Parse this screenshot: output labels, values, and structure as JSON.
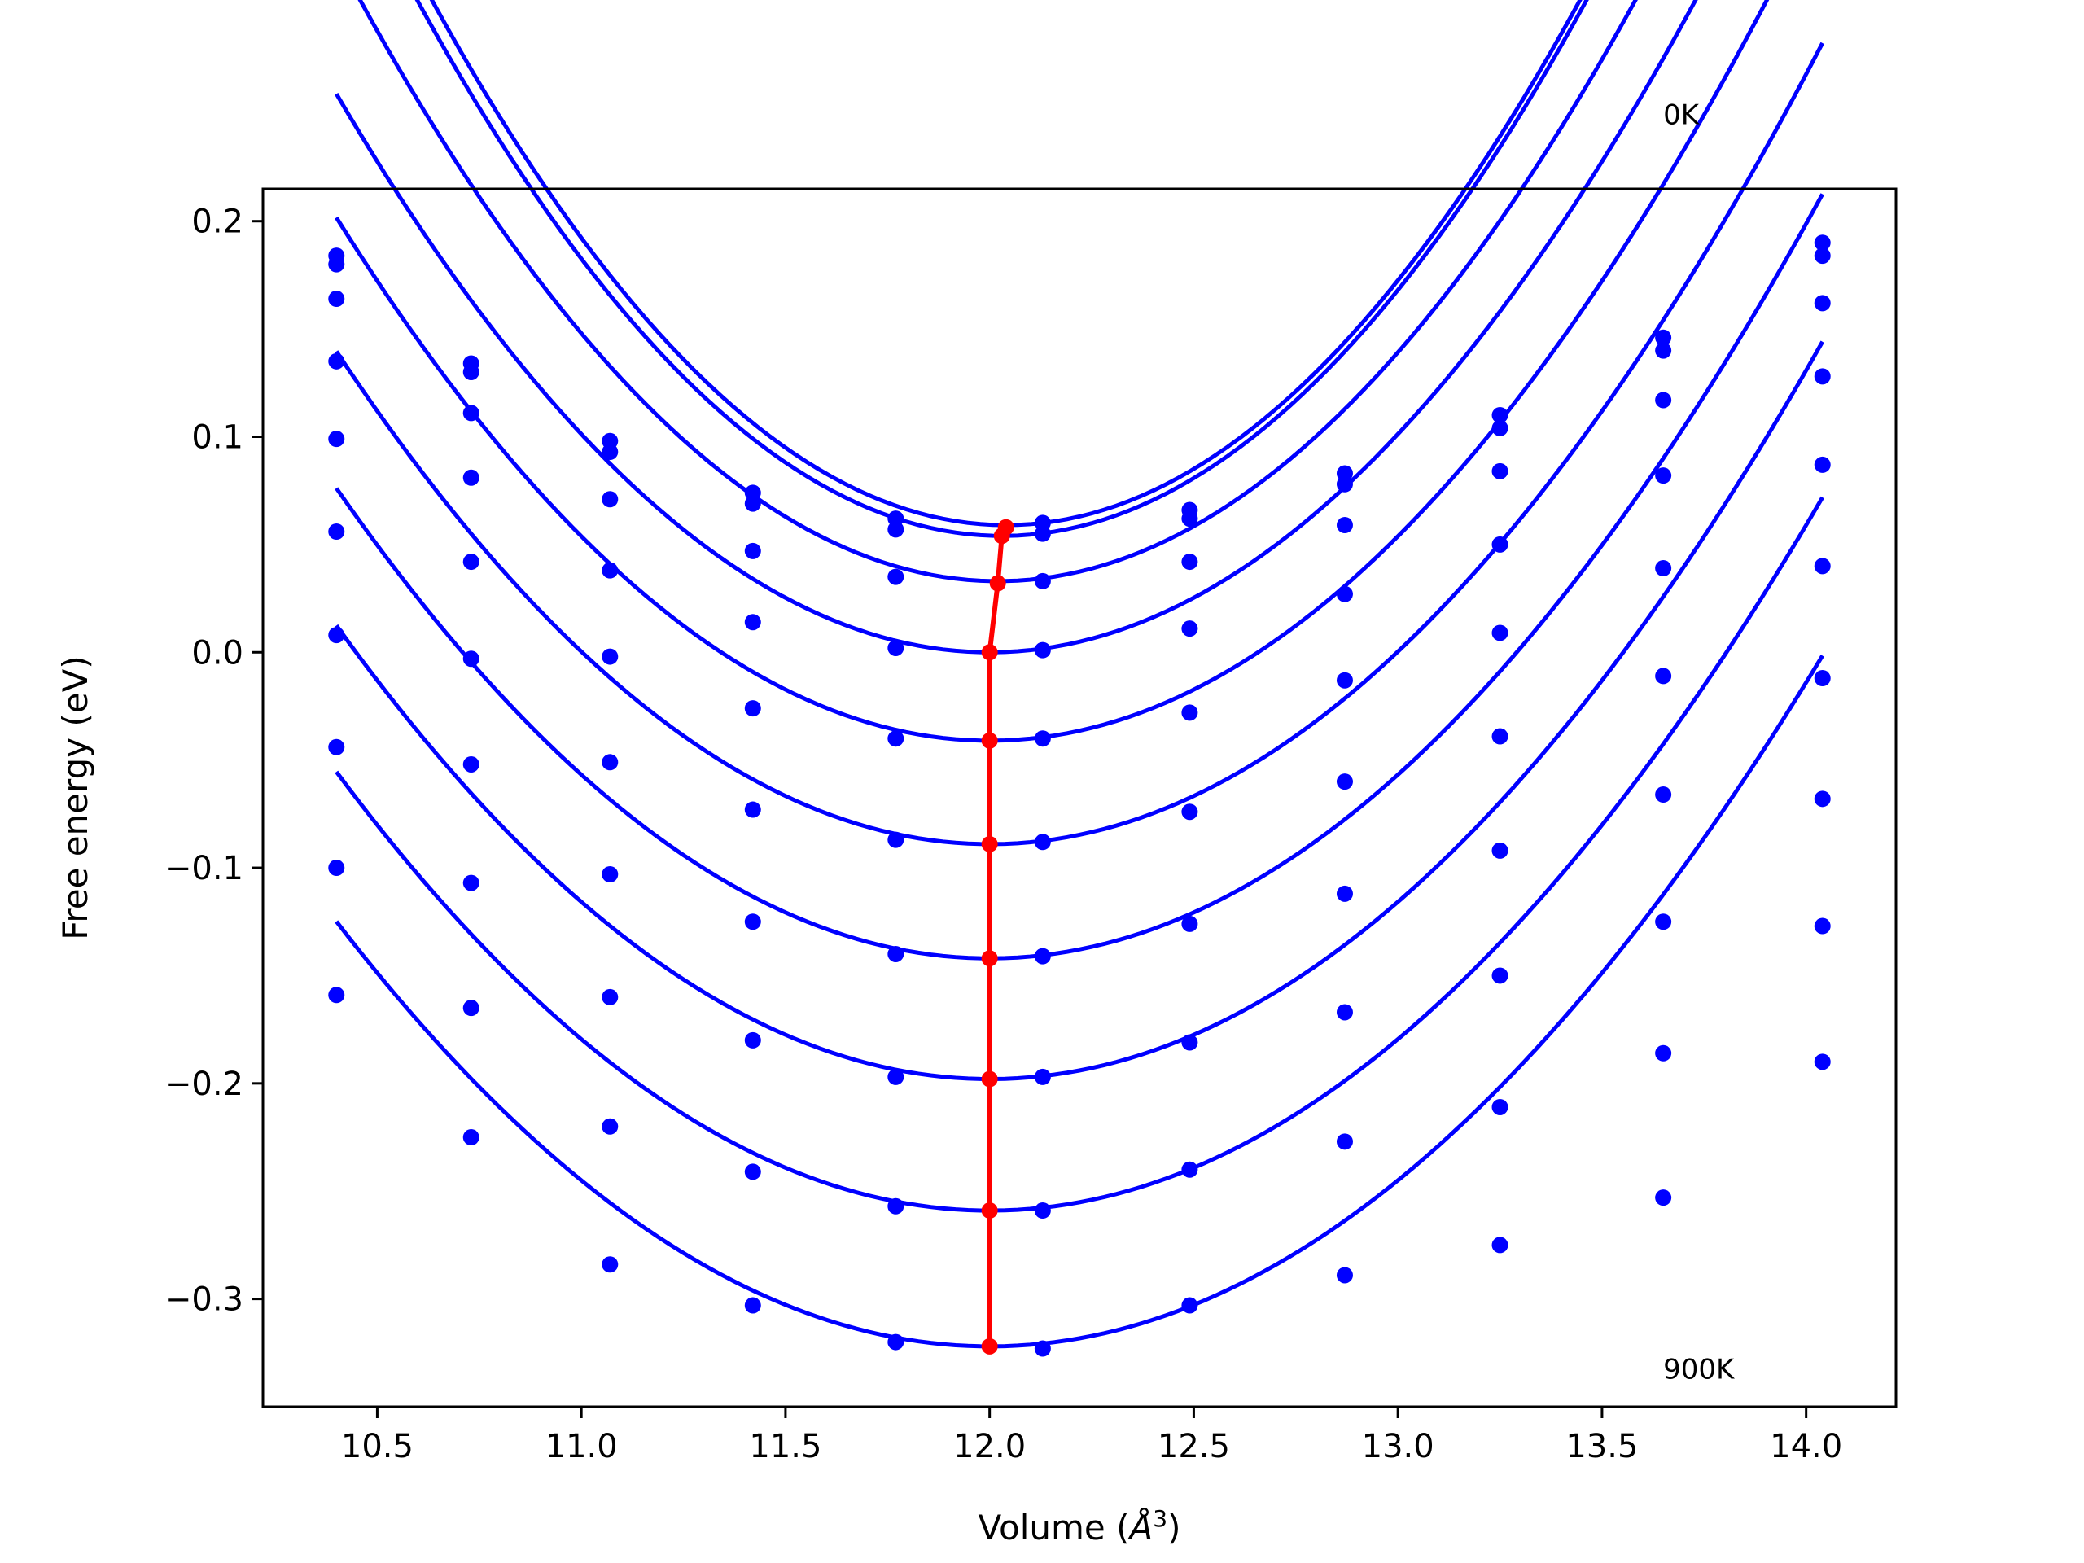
{
  "chart_data": {
    "type": "line",
    "title": "",
    "xlabel": "Volume (",
    "xlabel_unit": "Å",
    "xlabel_exp": "3",
    "xlabel_close": ")",
    "ylabel": "Free energy (eV)",
    "xlim": [
      10.22,
      14.22
    ],
    "ylim": [
      -0.35,
      0.215
    ],
    "xticks": [
      10.5,
      11.0,
      11.5,
      12.0,
      12.5,
      13.0,
      13.5,
      14.0
    ],
    "xtick_labels": [
      "10.5",
      "11.0",
      "11.5",
      "12.0",
      "12.5",
      "13.0",
      "13.5",
      "14.0"
    ],
    "yticks": [
      -0.3,
      -0.2,
      -0.1,
      0.0,
      0.1,
      0.2
    ],
    "ytick_labels": [
      "−0.3",
      "−0.2",
      "−0.1",
      "0.0",
      "0.1",
      "0.2"
    ],
    "grid": false,
    "annotations": [
      {
        "text": "0K",
        "x": 13.65,
        "y": 0.245
      },
      {
        "text": "900K",
        "x": 13.65,
        "y": -0.337
      }
    ],
    "x": [
      10.4,
      10.73,
      11.07,
      11.42,
      11.77,
      12.13,
      12.49,
      12.87,
      13.25,
      13.65,
      14.04
    ],
    "colors": {
      "curves": "#0000ff",
      "minima": "#ff0000"
    },
    "series": [
      {
        "values": [
          0.184,
          0.134,
          0.098,
          0.074,
          0.062,
          0.06,
          0.066,
          0.083,
          0.11,
          0.146,
          0.19
        ],
        "fit": {
          "a": 0.1232,
          "v0": 12.04,
          "f0": 0.059
        }
      },
      {
        "values": [
          0.18,
          0.13,
          0.093,
          0.069,
          0.057,
          0.055,
          0.062,
          0.078,
          0.104,
          0.14,
          0.184
        ],
        "fit": {
          "a": 0.1212,
          "v0": 12.03,
          "f0": 0.054
        }
      },
      {
        "values": [
          0.164,
          0.111,
          0.071,
          0.047,
          0.035,
          0.033,
          0.042,
          0.059,
          0.084,
          0.117,
          0.162
        ],
        "fit": {
          "a": 0.1105,
          "v0": 12.02,
          "f0": 0.033
        }
      },
      {
        "values": [
          0.135,
          0.081,
          0.038,
          0.014,
          0.002,
          0.001,
          0.011,
          0.027,
          0.05,
          0.082,
          0.128
        ],
        "fit": {
          "a": 0.1012,
          "v0": 12.0,
          "f0": 0.0
        }
      },
      {
        "values": [
          0.099,
          0.042,
          -0.002,
          -0.026,
          -0.04,
          -0.04,
          -0.028,
          -0.013,
          0.009,
          0.039,
          0.087
        ],
        "fit": {
          "a": 0.0948,
          "v0": 12.0,
          "f0": -0.041
        }
      },
      {
        "values": [
          0.056,
          -0.003,
          -0.051,
          -0.073,
          -0.087,
          -0.088,
          -0.074,
          -0.06,
          -0.039,
          -0.011,
          0.04
        ],
        "fit": {
          "a": 0.0893,
          "v0": 12.0,
          "f0": -0.089
        }
      },
      {
        "values": [
          0.008,
          -0.052,
          -0.103,
          -0.125,
          -0.14,
          -0.141,
          -0.126,
          -0.112,
          -0.092,
          -0.066,
          -0.012
        ],
        "fit": {
          "a": 0.0852,
          "v0": 12.0,
          "f0": -0.142
        }
      },
      {
        "values": [
          -0.044,
          -0.107,
          -0.16,
          -0.18,
          -0.197,
          -0.197,
          -0.181,
          -0.167,
          -0.15,
          -0.125,
          -0.068
        ],
        "fit": {
          "a": 0.0822,
          "v0": 12.0,
          "f0": -0.198
        }
      },
      {
        "values": [
          -0.1,
          -0.165,
          -0.22,
          -0.241,
          -0.257,
          -0.259,
          -0.24,
          -0.227,
          -0.211,
          -0.186,
          -0.127
        ],
        "fit": {
          "a": 0.0795,
          "v0": 12.0,
          "f0": -0.259
        }
      },
      {
        "values": [
          -0.159,
          -0.225,
          -0.284,
          -0.303,
          -0.32,
          -0.323,
          -0.303,
          -0.289,
          -0.275,
          -0.253,
          -0.19
        ],
        "fit": {
          "a": 0.077,
          "v0": 12.0,
          "f0": -0.322
        }
      }
    ],
    "minima": {
      "x": [
        12.04,
        12.03,
        12.02,
        12.0,
        12.0,
        12.0,
        12.0,
        12.0,
        12.0,
        12.0
      ],
      "y": [
        0.058,
        0.054,
        0.032,
        0.0,
        -0.041,
        -0.089,
        -0.142,
        -0.198,
        -0.259,
        -0.322
      ]
    }
  }
}
